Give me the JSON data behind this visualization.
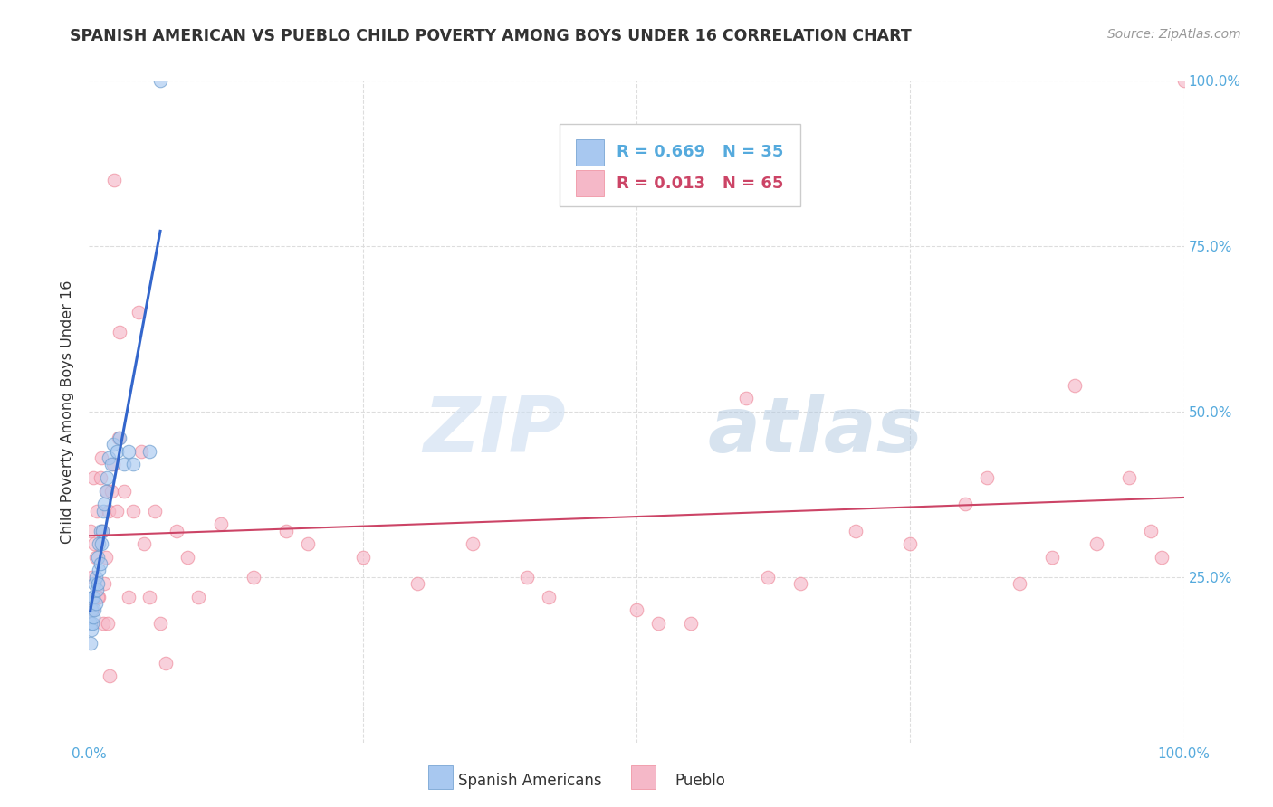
{
  "title": "SPANISH AMERICAN VS PUEBLO CHILD POVERTY AMONG BOYS UNDER 16 CORRELATION CHART",
  "source": "Source: ZipAtlas.com",
  "ylabel": "Child Poverty Among Boys Under 16",
  "xlim": [
    0,
    1
  ],
  "ylim": [
    0,
    1
  ],
  "background_color": "#ffffff",
  "watermark_zip": "ZIP",
  "watermark_atlas": "atlas",
  "blue_color": "#a8c8f0",
  "blue_dark": "#6699cc",
  "pink_color": "#f5b8c8",
  "pink_dark": "#ee8899",
  "blue_line_color": "#3366cc",
  "pink_line_color": "#cc4466",
  "grid_color": "#dddddd",
  "tick_color": "#55aadd",
  "scatter_alpha": 0.65,
  "marker_size": 110,
  "legend_R1": "R = 0.669",
  "legend_N1": "N = 35",
  "legend_R2": "R = 0.013",
  "legend_N2": "N = 65",
  "spanish_x": [
    0.001,
    0.001,
    0.002,
    0.002,
    0.003,
    0.003,
    0.004,
    0.004,
    0.005,
    0.005,
    0.006,
    0.006,
    0.007,
    0.008,
    0.008,
    0.009,
    0.009,
    0.01,
    0.01,
    0.011,
    0.012,
    0.013,
    0.014,
    0.015,
    0.016,
    0.018,
    0.02,
    0.022,
    0.025,
    0.028,
    0.032,
    0.036,
    0.04,
    0.055,
    0.065
  ],
  "spanish_y": [
    0.15,
    0.18,
    0.17,
    0.2,
    0.18,
    0.22,
    0.19,
    0.22,
    0.2,
    0.24,
    0.21,
    0.25,
    0.23,
    0.24,
    0.28,
    0.26,
    0.3,
    0.27,
    0.32,
    0.3,
    0.32,
    0.35,
    0.36,
    0.38,
    0.4,
    0.43,
    0.42,
    0.45,
    0.44,
    0.46,
    0.42,
    0.44,
    0.42,
    0.44,
    1.0
  ],
  "pueblo_x": [
    0.004,
    0.005,
    0.007,
    0.009,
    0.01,
    0.012,
    0.013,
    0.015,
    0.016,
    0.018,
    0.02,
    0.022,
    0.025,
    0.028,
    0.032,
    0.036,
    0.04,
    0.045,
    0.05,
    0.055,
    0.06,
    0.065,
    0.07,
    0.08,
    0.09,
    0.1,
    0.12,
    0.15,
    0.18,
    0.2,
    0.25,
    0.3,
    0.35,
    0.4,
    0.42,
    0.5,
    0.52,
    0.55,
    0.6,
    0.62,
    0.65,
    0.7,
    0.75,
    0.8,
    0.82,
    0.85,
    0.88,
    0.9,
    0.92,
    0.95,
    0.97,
    0.98,
    1.0,
    0.001,
    0.002,
    0.003,
    0.006,
    0.008,
    0.011,
    0.014,
    0.017,
    0.019,
    0.023,
    0.027,
    0.048
  ],
  "pueblo_y": [
    0.4,
    0.3,
    0.35,
    0.22,
    0.4,
    0.32,
    0.18,
    0.28,
    0.38,
    0.35,
    0.38,
    0.42,
    0.35,
    0.62,
    0.38,
    0.22,
    0.35,
    0.65,
    0.3,
    0.22,
    0.35,
    0.18,
    0.12,
    0.32,
    0.28,
    0.22,
    0.33,
    0.25,
    0.32,
    0.3,
    0.28,
    0.24,
    0.3,
    0.25,
    0.22,
    0.2,
    0.18,
    0.18,
    0.52,
    0.25,
    0.24,
    0.32,
    0.3,
    0.36,
    0.4,
    0.24,
    0.28,
    0.54,
    0.3,
    0.4,
    0.32,
    0.28,
    1.0,
    0.32,
    0.25,
    0.2,
    0.28,
    0.22,
    0.43,
    0.24,
    0.18,
    0.1,
    0.85,
    0.46,
    0.44
  ]
}
